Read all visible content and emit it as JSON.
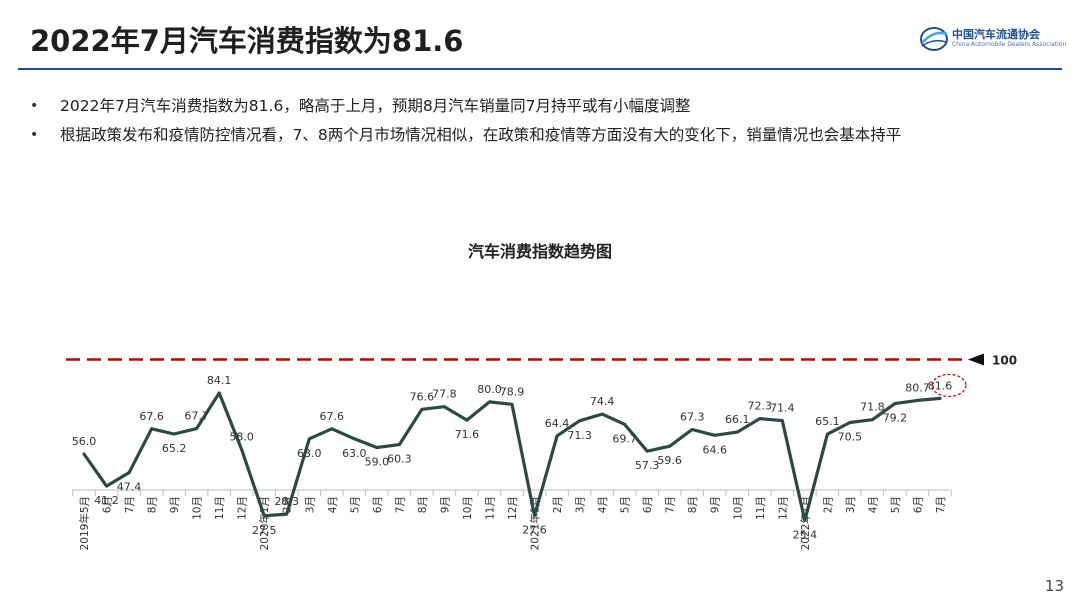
{
  "header": {
    "title": "2022年7月汽车消费指数为81.6",
    "logo_cn": "中国汽车流通协会",
    "logo_en": "China Automobile Dealers Association"
  },
  "bullets": [
    "2022年7月汽车消费指数为81.6，略高于上月，预期8月汽车销量同7月持平或有小幅度调整",
    "根据政策发布和疫情防控情况看，7、8两个月市场情况相似，在政策和疫情等方面没有大的变化下，销量情况也会基本持平"
  ],
  "chart_data": {
    "type": "line",
    "title": "汽车消费指数趋势图",
    "categories": [
      "2019年5月",
      "6月",
      "7月",
      "8月",
      "9月",
      "10月",
      "11月",
      "12月",
      "2020年1月",
      "2月",
      "3月",
      "4月",
      "5月",
      "6月",
      "7月",
      "8月",
      "9月",
      "10月",
      "11月",
      "12月",
      "2021年1月",
      "2月",
      "3月",
      "4月",
      "5月",
      "6月",
      "7月",
      "8月",
      "9月",
      "10月",
      "11月",
      "12月",
      "2022年1月",
      "2月",
      "3月",
      "4月",
      "5月",
      "6月",
      "7月"
    ],
    "series": [
      {
        "values": [
          56.0,
          41.2,
          47.4,
          67.6,
          65.2,
          67.7,
          84.1,
          58.0,
          27.5,
          28.3,
          63.0,
          67.6,
          63.0,
          59.0,
          60.3,
          76.6,
          77.8,
          71.6,
          80.0,
          78.9,
          27.6,
          64.4,
          71.3,
          74.4,
          69.7,
          57.3,
          59.6,
          67.3,
          64.6,
          66.1,
          72.3,
          71.4,
          25.4,
          65.1,
          70.5,
          71.8,
          79.2,
          80.7,
          81.6
        ]
      }
    ],
    "value_labels": [
      "56.0",
      "41.2",
      "47.4",
      "67.6",
      "65.2",
      "67.7",
      "84.1",
      "58.0",
      "27.5",
      "28.3",
      "63.0",
      "67.6",
      "63.0",
      "59.0",
      "60.3",
      "76.6",
      "77.8",
      "71.6",
      "80.0",
      "78.9",
      "27.6",
      "64.4",
      "71.3",
      "74.4",
      "69.7",
      "57.3",
      "59.6",
      "67.3",
      "64.6",
      "66.1",
      "72.3",
      "71.4",
      "25.4",
      "65.1",
      "70.5",
      "71.8",
      "79.2",
      "80.7",
      "81.6"
    ],
    "reference_line": {
      "value": 100,
      "label": "100",
      "style": "dashed",
      "color": "#c00000"
    },
    "highlight_index": 38,
    "line_color": "#2b4a46",
    "grid": false,
    "legend": "none"
  },
  "page_number": "13"
}
